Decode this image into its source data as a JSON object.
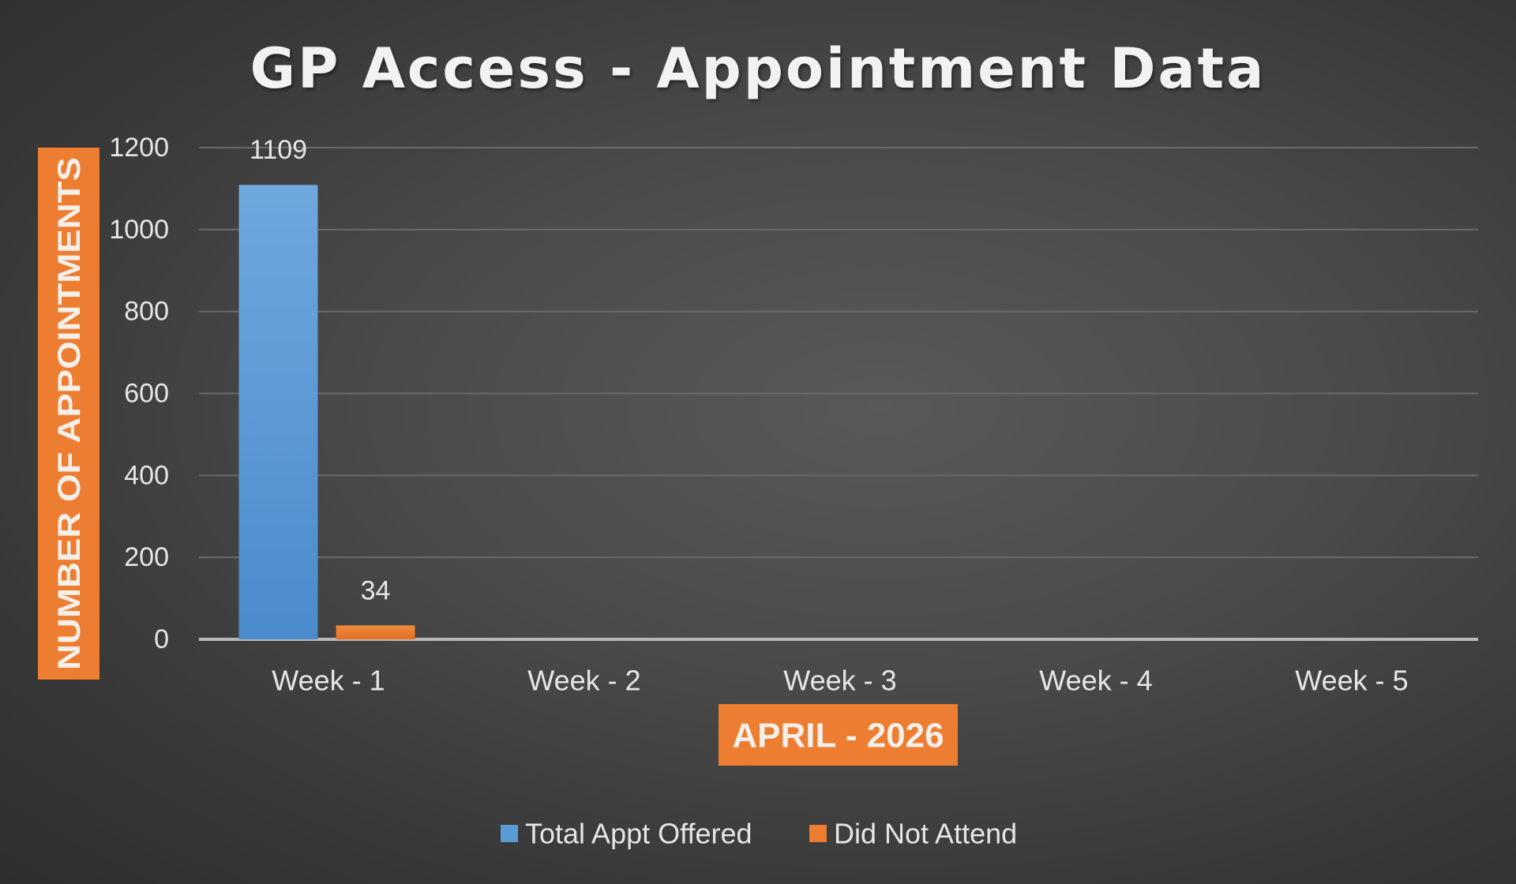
{
  "chart_data": {
    "type": "bar",
    "title": "GP Access - Appointment Data",
    "xlabel": "APRIL - 2026",
    "ylabel": "NUMBER OF APPOINTMENTS",
    "categories": [
      "Week - 1",
      "Week - 2",
      "Week - 3",
      "Week - 4",
      "Week - 5"
    ],
    "series": [
      {
        "name": "Total Appt Offered",
        "color": "#5b9bd5",
        "values": [
          1109,
          null,
          null,
          null,
          null
        ]
      },
      {
        "name": "Did Not Attend",
        "color": "#ed7d31",
        "values": [
          34,
          null,
          null,
          null,
          null
        ]
      }
    ],
    "ylim": [
      0,
      1200
    ],
    "yticks": [
      0,
      200,
      400,
      600,
      800,
      1000,
      1200
    ],
    "data_labels": true,
    "grid": true,
    "legend_position": "bottom",
    "axis_title_background": "#ed7d31"
  }
}
